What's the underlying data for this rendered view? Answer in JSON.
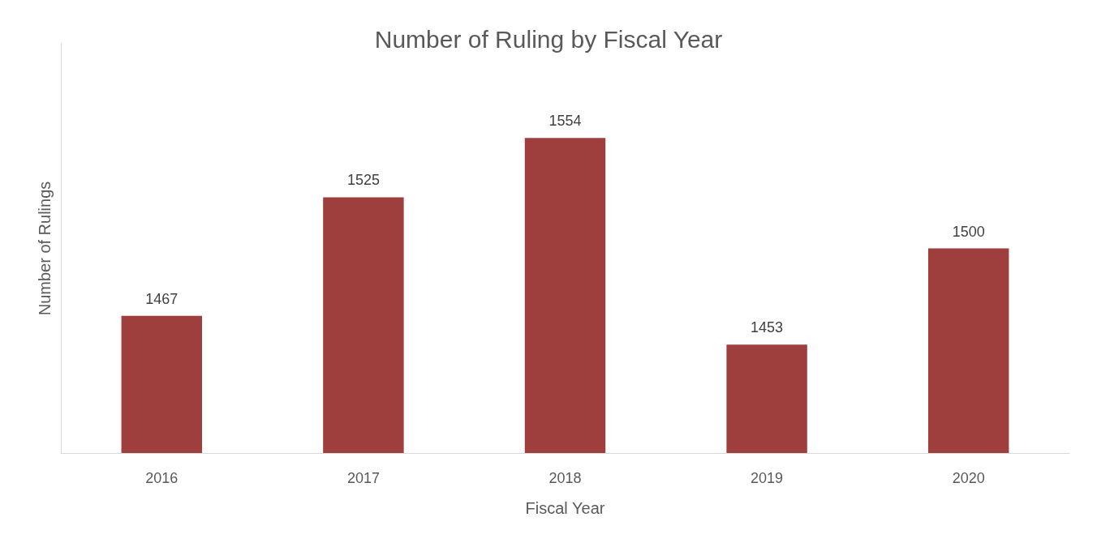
{
  "chart_data": {
    "type": "bar",
    "title": "Number of Ruling by Fiscal Year",
    "xlabel": "Fiscal Year",
    "ylabel": "Number of Rulings",
    "categories": [
      "2016",
      "2017",
      "2018",
      "2019",
      "2020"
    ],
    "series": [
      {
        "color": "#9e3f3d",
        "values": [
          1467,
          1525,
          1554,
          1453,
          1500
        ]
      }
    ],
    "ylim": [
      1400,
      1600
    ],
    "data_labels": true,
    "grid": false,
    "tick_labels": "x"
  }
}
